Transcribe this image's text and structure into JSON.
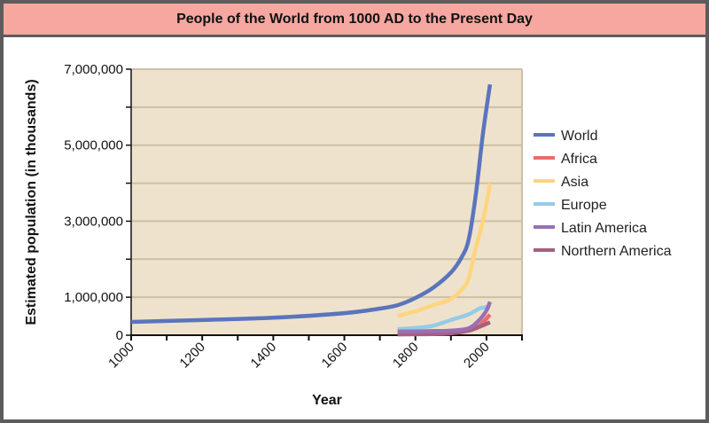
{
  "chart_data": {
    "type": "line",
    "title": "People of the World from 1000 AD to the Present Day",
    "xlabel": "Year",
    "ylabel": "Estimated population (in thousands)",
    "xlim": [
      1000,
      2100
    ],
    "ylim": [
      0,
      7000000
    ],
    "x_ticks": [
      1000,
      1200,
      1400,
      1600,
      1800,
      2000
    ],
    "y_ticks": [
      {
        "value": 0,
        "label": "0"
      },
      {
        "value": 1000000,
        "label": "1,000,000"
      },
      {
        "value": 3000000,
        "label": "3,000,000"
      },
      {
        "value": 5000000,
        "label": "5,000,000"
      },
      {
        "value": 7000000,
        "label": "7,000,000"
      }
    ],
    "grid": true,
    "legend_position": "right",
    "background_color": "#efe2cc",
    "series": [
      {
        "name": "World",
        "color": "#5a74bd",
        "x": [
          1000,
          1200,
          1400,
          1600,
          1700,
          1750,
          1800,
          1850,
          1900,
          1930,
          1950,
          1970,
          1990,
          2010
        ],
        "y": [
          350000,
          400000,
          460000,
          580000,
          700000,
          790000,
          980000,
          1250000,
          1650000,
          2050000,
          2520000,
          3700000,
          5300000,
          6600000
        ]
      },
      {
        "name": "Africa",
        "color": "#ee6a6a",
        "x": [
          1750,
          1800,
          1850,
          1900,
          1950,
          1980,
          2010
        ],
        "y": [
          50000,
          55000,
          60000,
          70000,
          120000,
          250000,
          540000
        ]
      },
      {
        "name": "Asia",
        "color": "#fdd57e",
        "x": [
          1750,
          1800,
          1850,
          1900,
          1930,
          1950,
          1970,
          1990,
          2010
        ],
        "y": [
          500000,
          630000,
          790000,
          950000,
          1200000,
          1500000,
          2300000,
          3000000,
          4000000
        ]
      },
      {
        "name": "Europe",
        "color": "#95cbe6",
        "x": [
          1750,
          1800,
          1850,
          1900,
          1950,
          1980,
          2000,
          2010
        ],
        "y": [
          160000,
          190000,
          250000,
          400000,
          550000,
          700000,
          740000,
          740000
        ]
      },
      {
        "name": "Latin America",
        "color": "#9a6fb3",
        "x": [
          1750,
          1800,
          1850,
          1900,
          1950,
          1980,
          2000,
          2010
        ],
        "y": [
          100000,
          100000,
          110000,
          120000,
          180000,
          400000,
          650000,
          880000
        ]
      },
      {
        "name": "Northern America",
        "color": "#a95e80",
        "x": [
          1750,
          1800,
          1850,
          1900,
          1950,
          1980,
          2010
        ],
        "y": [
          20000,
          25000,
          30000,
          50000,
          120000,
          220000,
          340000
        ]
      }
    ]
  }
}
